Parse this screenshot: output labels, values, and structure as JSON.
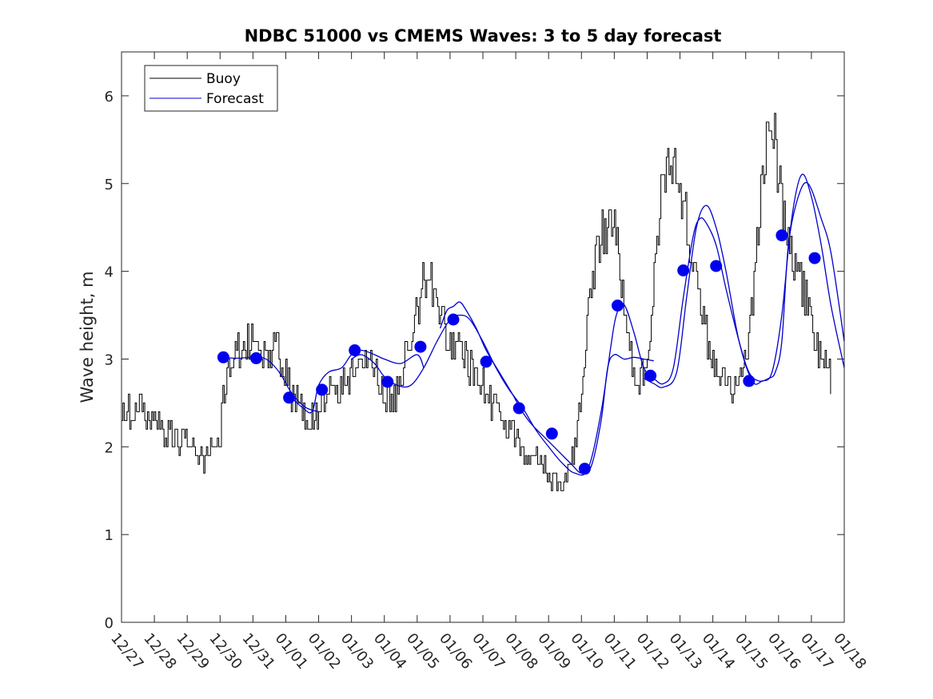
{
  "chart_data": {
    "type": "line",
    "title": "NDBC 51000 vs CMEMS Waves: 3 to 5 day forecast",
    "xlabel": "",
    "ylabel": "Wave height, m",
    "xlim": [
      0,
      22
    ],
    "ylim": [
      0,
      6.5
    ],
    "x_ticks": [
      "12/27",
      "12/28",
      "12/29",
      "12/30",
      "12/31",
      "01/01",
      "01/02",
      "01/03",
      "01/04",
      "01/05",
      "01/06",
      "01/07",
      "01/08",
      "01/09",
      "01/10",
      "01/11",
      "01/12",
      "01/13",
      "01/14",
      "01/15",
      "01/16",
      "01/17",
      "01/18"
    ],
    "y_ticks": [
      0,
      1,
      2,
      3,
      4,
      5,
      6
    ],
    "grid": false,
    "legend_position": "top-left",
    "series": [
      {
        "name": "Buoy",
        "color": "#000000",
        "style": "noisy-line",
        "x": [
          0,
          0.3,
          0.6,
          0.8,
          1.2,
          1.5,
          2.0,
          2.5,
          2.8,
          3.0,
          3.1,
          3.3,
          3.6,
          3.9,
          4.1,
          4.4,
          4.7,
          4.9,
          5.1,
          5.3,
          5.5,
          5.8,
          6.0,
          6.2,
          6.5,
          6.8,
          7.0,
          7.2,
          7.4,
          7.6,
          7.9,
          8.0,
          8.2,
          8.4,
          8.6,
          8.8,
          9.0,
          9.2,
          9.4,
          9.6,
          9.8,
          10.0,
          10.2,
          10.5,
          10.8,
          11.0,
          11.3,
          11.6,
          12.0,
          12.3,
          12.6,
          13.0,
          13.3,
          13.6,
          14.0,
          14.2,
          14.5,
          14.8,
          14.9,
          15.1,
          15.3,
          15.5,
          15.7,
          15.9,
          16.1,
          16.3,
          16.6,
          16.9,
          17.1,
          17.3,
          17.5,
          17.7,
          17.9,
          18.1,
          18.3,
          18.5,
          18.7,
          18.9,
          19.1,
          19.3,
          19.5,
          19.8,
          20.0,
          20.2,
          20.4,
          20.6,
          20.8,
          21.0,
          21.2,
          21.4,
          21.6
        ],
        "y": [
          2.5,
          2.4,
          2.5,
          2.3,
          2.2,
          2.1,
          2.0,
          1.9,
          1.9,
          2.1,
          2.6,
          3.0,
          3.1,
          3.2,
          3.1,
          3.0,
          3.1,
          3.0,
          2.7,
          2.5,
          2.4,
          2.3,
          2.4,
          2.6,
          2.7,
          2.7,
          2.8,
          3.0,
          3.0,
          2.9,
          2.7,
          2.6,
          2.5,
          2.7,
          3.0,
          3.3,
          3.6,
          3.9,
          4.0,
          3.6,
          3.4,
          3.2,
          3.1,
          3.0,
          2.8,
          2.7,
          2.5,
          2.3,
          2.1,
          2.0,
          1.9,
          1.7,
          1.6,
          1.7,
          2.5,
          3.5,
          4.4,
          4.5,
          4.7,
          4.3,
          3.5,
          3.0,
          2.8,
          2.8,
          3.3,
          4.5,
          5.3,
          5.1,
          4.8,
          4.3,
          3.8,
          3.4,
          3.1,
          2.9,
          2.8,
          2.7,
          2.7,
          2.8,
          3.2,
          4.1,
          5.2,
          5.8,
          5.0,
          4.5,
          4.2,
          4.0,
          3.7,
          3.4,
          3.1,
          2.9,
          2.8
        ]
      },
      {
        "name": "Forecast",
        "color": "#0000cc",
        "style": "smooth-lines",
        "segments": [
          {
            "x": [
              3.1,
              3.5,
              4.0,
              4.4,
              4.8,
              5.2,
              5.6,
              6.0
            ],
            "y": [
              3.02,
              3.01,
              3.02,
              3.0,
              2.85,
              2.6,
              2.45,
              2.4
            ]
          },
          {
            "x": [
              5.2,
              5.5,
              5.8,
              6.0,
              6.3,
              6.7,
              7.0,
              7.3,
              7.7,
              8.0,
              8.5,
              9.0,
              9.2
            ],
            "y": [
              2.55,
              2.45,
              2.4,
              2.7,
              2.85,
              2.9,
              3.05,
              3.1,
              3.05,
              3.0,
              2.95,
              3.05,
              2.9
            ]
          },
          {
            "x": [
              7.0,
              7.3,
              7.7,
              8.0,
              8.4,
              8.8,
              9.2,
              9.6,
              10.0,
              10.3,
              10.6,
              11.0,
              11.4,
              11.8,
              12.2,
              12.6,
              13.0,
              13.4,
              13.8,
              14.2,
              14.6,
              15.0,
              15.2
            ],
            "y": [
              3.0,
              3.05,
              2.95,
              2.8,
              2.7,
              2.7,
              2.9,
              3.2,
              3.45,
              3.5,
              3.45,
              3.2,
              2.9,
              2.65,
              2.45,
              2.2,
              2.0,
              1.82,
              1.7,
              1.75,
              2.4,
              3.4,
              3.6
            ]
          },
          {
            "x": [
              9.7,
              9.9,
              10.1,
              10.3,
              10.5,
              10.8,
              11.1,
              11.5,
              11.9,
              12.2,
              12.5,
              12.9,
              13.3,
              13.7,
              14.0,
              14.3,
              14.6,
              14.8,
              15.0,
              15.3,
              15.6,
              15.9,
              16.2
            ],
            "y": [
              3.35,
              3.55,
              3.6,
              3.65,
              3.55,
              3.35,
              3.1,
              2.85,
              2.6,
              2.4,
              2.25,
              2.1,
              1.95,
              1.8,
              1.7,
              1.78,
              2.3,
              2.9,
              3.05,
              3.0,
              3.02,
              3.0,
              2.98
            ]
          },
          {
            "x": [
              15.0,
              15.3,
              15.6,
              15.9,
              16.2,
              16.5,
              16.8,
              17.1,
              17.4,
              17.6,
              17.8,
              18.1,
              18.4,
              18.8,
              19.1,
              19.4,
              19.7,
              19.9,
              20.1,
              20.3,
              20.6,
              20.9,
              21.3,
              21.6,
              22.0
            ],
            "y": [
              3.6,
              3.62,
              3.3,
              2.9,
              2.78,
              2.72,
              2.9,
              3.7,
              4.4,
              4.6,
              4.55,
              4.3,
              3.8,
              3.2,
              2.85,
              2.75,
              2.78,
              2.85,
              3.2,
              4.3,
              4.85,
              5.0,
              4.6,
              4.2,
              3.2
            ]
          },
          {
            "x": [
              15.9,
              16.2,
              16.5,
              16.9,
              17.2,
              17.5,
              17.8,
              18.1,
              18.4,
              18.8,
              19.2,
              19.5,
              19.8,
              20.1,
              20.4,
              20.7,
              21.0,
              21.3,
              21.6,
              22.0
            ],
            "y": [
              2.78,
              2.72,
              2.68,
              2.85,
              3.7,
              4.5,
              4.75,
              4.5,
              4.0,
              3.2,
              2.75,
              2.75,
              2.85,
              3.5,
              4.6,
              5.1,
              4.85,
              4.3,
              3.6,
              2.9
            ]
          }
        ]
      }
    ],
    "markers": {
      "name": "Forecast markers",
      "color": "#0000ee",
      "x": [
        3.1,
        4.1,
        5.1,
        6.1,
        7.1,
        8.1,
        9.1,
        10.1,
        11.1,
        12.1,
        13.1,
        14.1,
        15.1,
        16.1,
        17.1,
        18.1,
        19.1,
        20.1,
        21.1
      ],
      "y": [
        3.02,
        3.01,
        2.56,
        2.65,
        3.1,
        2.74,
        3.14,
        3.45,
        2.97,
        2.44,
        2.15,
        1.75,
        3.61,
        2.81,
        4.01,
        4.06,
        2.75,
        4.41,
        4.15
      ]
    }
  }
}
